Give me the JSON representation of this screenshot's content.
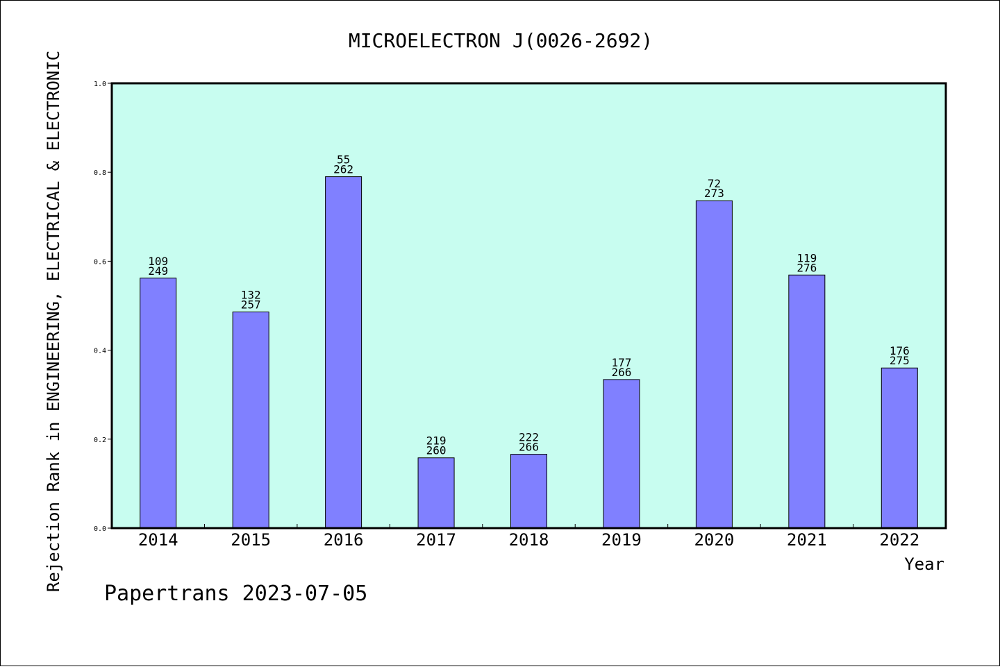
{
  "chart_data": {
    "type": "bar",
    "title": "MICROELECTRON J(0026-2692)",
    "xlabel": "Year",
    "ylabel": "Rejection Rank in ENGINEERING, ELECTRICAL & ELECTRONIC",
    "ylim": [
      0,
      1.0
    ],
    "yticks": [
      "0.0",
      "0.2",
      "0.4",
      "0.6",
      "0.8",
      "1.0"
    ],
    "grid": false,
    "categories": [
      "2014",
      "2015",
      "2016",
      "2017",
      "2018",
      "2019",
      "2020",
      "2021",
      "2022"
    ],
    "values": [
      0.562,
      0.486,
      0.79,
      0.158,
      0.166,
      0.334,
      0.736,
      0.569,
      0.36
    ],
    "rank": [
      "109",
      "132",
      "55",
      "219",
      "222",
      "177",
      "72",
      "119",
      "176"
    ],
    "total": [
      "249",
      "257",
      "262",
      "260",
      "266",
      "266",
      "273",
      "276",
      "275"
    ],
    "colors": {
      "bar": "#8080ff",
      "plot_bg": "#c8fdf0"
    }
  },
  "footer": "Papertrans 2023-07-05"
}
